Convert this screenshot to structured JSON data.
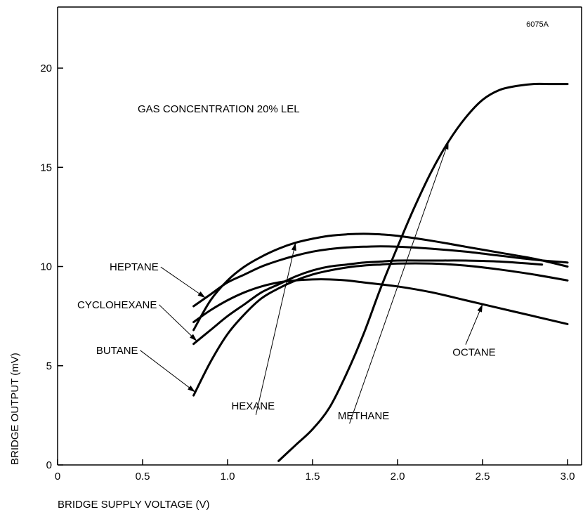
{
  "chart_data": {
    "type": "line",
    "figure_id": "6075A",
    "annotation": "GAS CONCENTRATION 20% LEL",
    "xlabel": "BRIDGE SUPPLY VOLTAGE (V)",
    "ylabel": "BRIDGE OUTPUT (mV)",
    "xlim": [
      0,
      3.1
    ],
    "ylim": [
      0,
      23
    ],
    "x_ticks": [
      0,
      0.5,
      1.0,
      1.5,
      2.0,
      2.5,
      3.0
    ],
    "x_tick_labels": [
      "0",
      "0.5",
      "1.0",
      "1.5",
      "2.0",
      "2.5",
      "3.0"
    ],
    "y_ticks": [
      0,
      5,
      10,
      15,
      20
    ],
    "y_tick_labels": [
      "0",
      "5",
      "10",
      "15",
      "20"
    ],
    "grid": false,
    "legend": "none",
    "series": [
      {
        "name": "METHANE",
        "x": [
          1.3,
          1.4,
          1.5,
          1.6,
          1.7,
          1.8,
          1.9,
          2.0,
          2.1,
          2.2,
          2.3,
          2.4,
          2.5,
          2.6,
          2.7,
          2.8,
          2.9,
          3.0
        ],
        "y": [
          0.2,
          1.0,
          1.8,
          2.9,
          4.6,
          6.6,
          8.9,
          11.0,
          13.0,
          14.8,
          16.3,
          17.5,
          18.4,
          18.9,
          19.1,
          19.2,
          19.2,
          19.2
        ],
        "label_at": [
          1.8,
          2.3
        ]
      },
      {
        "name": "HEXANE",
        "x": [
          0.8,
          0.9,
          1.0,
          1.1,
          1.2,
          1.3,
          1.4,
          1.5,
          1.6,
          1.7,
          1.8,
          1.9,
          2.0,
          2.2,
          2.4,
          2.6,
          2.8,
          3.0
        ],
        "y": [
          6.8,
          8.3,
          9.3,
          10.0,
          10.5,
          10.9,
          11.2,
          11.4,
          11.55,
          11.62,
          11.65,
          11.62,
          11.55,
          11.3,
          11.0,
          10.7,
          10.4,
          10.0
        ],
        "label_at": [
          1.15,
          2.8
        ]
      },
      {
        "name": "HEPTANE",
        "x": [
          0.8,
          0.9,
          1.0,
          1.1,
          1.2,
          1.3,
          1.4,
          1.5,
          1.6,
          1.7,
          1.8,
          1.9,
          2.0,
          2.2,
          2.4,
          2.6,
          2.8,
          3.0
        ],
        "y": [
          8.0,
          8.6,
          9.2,
          9.6,
          10.0,
          10.3,
          10.55,
          10.75,
          10.88,
          10.96,
          11.0,
          11.02,
          11.0,
          10.9,
          10.75,
          10.55,
          10.35,
          10.2
        ],
        "label_at": [
          0.45,
          9.8
        ]
      },
      {
        "name": "CYCLOHEXANE",
        "x": [
          0.8,
          0.9,
          1.0,
          1.1,
          1.2,
          1.3,
          1.4,
          1.5,
          1.6,
          1.7,
          1.8,
          1.9,
          2.0,
          2.2,
          2.4,
          2.6,
          2.85
        ],
        "y": [
          6.1,
          6.8,
          7.5,
          8.1,
          8.7,
          9.1,
          9.5,
          9.8,
          10.0,
          10.1,
          10.2,
          10.25,
          10.3,
          10.3,
          10.3,
          10.25,
          10.1
        ],
        "label_at": [
          0.35,
          7.9
        ]
      },
      {
        "name": "BUTANE",
        "x": [
          0.8,
          0.9,
          1.0,
          1.1,
          1.2,
          1.3,
          1.4,
          1.5,
          1.6,
          1.7,
          1.8,
          1.9,
          2.0,
          2.2,
          2.4,
          2.6,
          2.8,
          3.0
        ],
        "y": [
          3.5,
          5.2,
          6.6,
          7.6,
          8.4,
          8.9,
          9.3,
          9.6,
          9.8,
          9.95,
          10.05,
          10.1,
          10.15,
          10.15,
          10.05,
          9.85,
          9.6,
          9.3
        ],
        "label_at": [
          0.35,
          5.6
        ]
      },
      {
        "name": "OCTANE",
        "x": [
          0.8,
          0.9,
          1.0,
          1.1,
          1.2,
          1.3,
          1.4,
          1.5,
          1.6,
          1.7,
          1.8,
          1.9,
          2.0,
          2.2,
          2.4,
          2.6,
          2.8,
          3.0
        ],
        "y": [
          7.2,
          7.8,
          8.3,
          8.7,
          9.0,
          9.2,
          9.3,
          9.35,
          9.35,
          9.3,
          9.2,
          9.1,
          9.0,
          8.7,
          8.3,
          7.9,
          7.5,
          7.1
        ],
        "label_at": [
          2.45,
          5.5
        ]
      }
    ]
  }
}
